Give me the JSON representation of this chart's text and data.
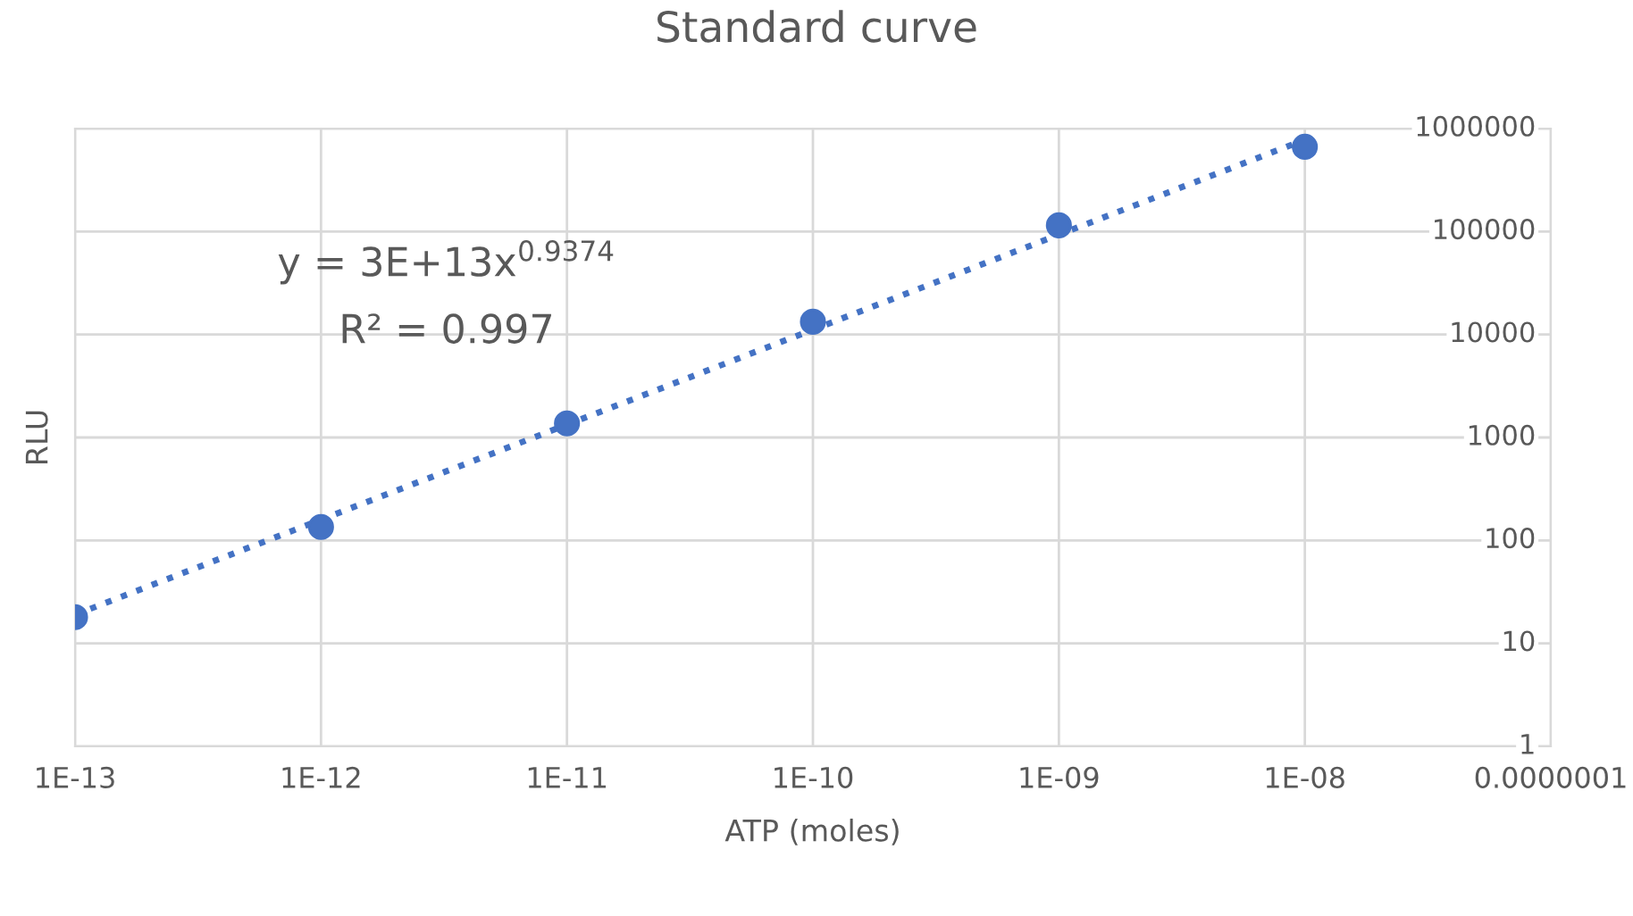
{
  "chart_data": {
    "type": "scatter",
    "title": "Standard curve",
    "xlabel": "ATP (moles)",
    "ylabel": "RLU",
    "log": "xy",
    "grid": true,
    "marker": "circle",
    "xlim": [
      1e-13,
      1e-07
    ],
    "xticks": [
      {
        "value": 1e-13,
        "label": "1E-13"
      },
      {
        "value": 1e-12,
        "label": "1E-12"
      },
      {
        "value": 1e-11,
        "label": "1E-11"
      },
      {
        "value": 1e-10,
        "label": "1E-10"
      },
      {
        "value": 1e-09,
        "label": "1E-09"
      },
      {
        "value": 1e-08,
        "label": "1E-08"
      },
      {
        "value": 1e-07,
        "label": "0.0000001"
      }
    ],
    "ylim": [
      1,
      1000000
    ],
    "yticks": [
      1,
      10,
      100,
      1000,
      10000,
      100000,
      1000000
    ],
    "series": [
      {
        "color": "#4472c4",
        "x": [
          1e-13,
          1e-12,
          1e-11,
          1e-10,
          1e-09,
          1e-08
        ],
        "values": [
          18,
          135,
          1370,
          13300,
          115000,
          665000
        ]
      },
      {
        "type": "line",
        "color": "#4472c4",
        "line_style": "dotted",
        "marker": "none",
        "x": [
          1e-13,
          1e-08
        ],
        "values": [
          19,
          780000
        ]
      }
    ],
    "annotations": [
      {
        "text": "y = 3E+13x$^{0.9374}$"
      },
      {
        "text": "R² = 0.997"
      }
    ]
  }
}
